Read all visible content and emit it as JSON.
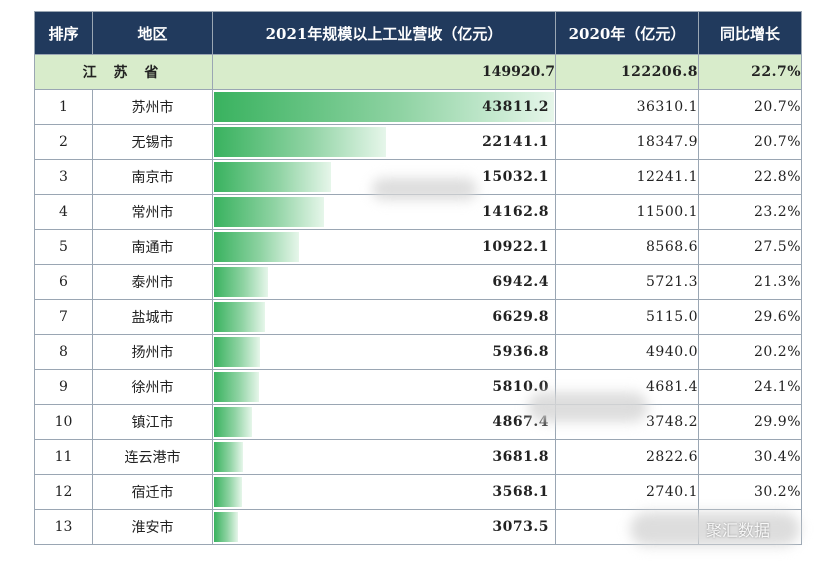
{
  "chart_data": {
    "type": "table",
    "columns": [
      "排序",
      "地区",
      "2021年规模以上工业营收（亿元）",
      "2020年（亿元）",
      "同比增长"
    ],
    "total": {
      "region": "江 苏 省",
      "v2021": "149920.7",
      "v2020": "122206.8",
      "growth": "22.7%"
    },
    "rows": [
      {
        "rank": "1",
        "city": "苏州市",
        "v2021": "43811.2",
        "v2020": "36310.1",
        "growth": "20.7%"
      },
      {
        "rank": "2",
        "city": "无锡市",
        "v2021": "22141.1",
        "v2020": "18347.9",
        "growth": "20.7%"
      },
      {
        "rank": "3",
        "city": "南京市",
        "v2021": "15032.1",
        "v2020": "12241.1",
        "growth": "22.8%"
      },
      {
        "rank": "4",
        "city": "常州市",
        "v2021": "14162.8",
        "v2020": "11500.1",
        "growth": "23.2%"
      },
      {
        "rank": "5",
        "city": "南通市",
        "v2021": "10922.1",
        "v2020": "8568.6",
        "growth": "27.5%"
      },
      {
        "rank": "6",
        "city": "泰州市",
        "v2021": "6942.4",
        "v2020": "5721.3",
        "growth": "21.3%"
      },
      {
        "rank": "7",
        "city": "盐城市",
        "v2021": "6629.8",
        "v2020": "5115.0",
        "growth": "29.6%"
      },
      {
        "rank": "8",
        "city": "扬州市",
        "v2021": "5936.8",
        "v2020": "4940.0",
        "growth": "20.2%"
      },
      {
        "rank": "9",
        "city": "徐州市",
        "v2021": "5810.0",
        "v2020": "4681.4",
        "growth": "24.1%"
      },
      {
        "rank": "10",
        "city": "镇江市",
        "v2021": "4867.4",
        "v2020": "3748.2",
        "growth": "29.9%"
      },
      {
        "rank": "11",
        "city": "连云港市",
        "v2021": "3681.8",
        "v2020": "2822.6",
        "growth": "30.4%"
      },
      {
        "rank": "12",
        "city": "宿迁市",
        "v2021": "3568.1",
        "v2020": "2740.1",
        "growth": "30.2%"
      },
      {
        "rank": "13",
        "city": "淮安市",
        "v2021": "3073.5",
        "v2020": "",
        "growth": ""
      }
    ],
    "bar_max": 43811.2,
    "colors": {
      "header": "#213a5d",
      "total_row": "#d8eccb",
      "bar": "#39b25f"
    }
  },
  "watermark": "聚汇数据"
}
